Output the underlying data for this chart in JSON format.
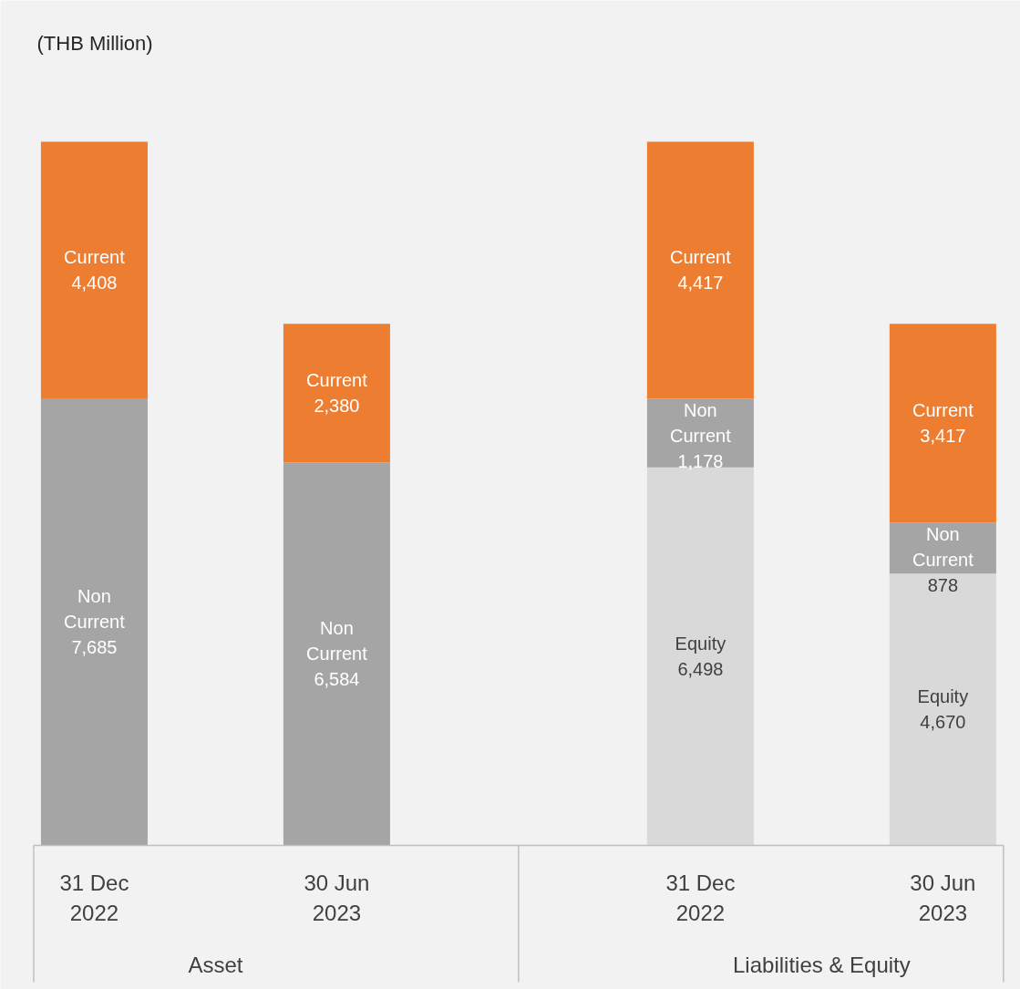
{
  "chart_data": {
    "type": "bar",
    "stacked": true,
    "title": "(THB Million)",
    "categories": [
      "31 Dec 2022",
      "30 Jun 2023",
      "31 Dec 2022",
      "30 Jun 2023"
    ],
    "series": [
      {
        "name": "Equity",
        "color": "#d9d9d9",
        "values": [
          null,
          null,
          6498,
          4670
        ],
        "value_labels": [
          null,
          null,
          "6,498",
          "4,670"
        ]
      },
      {
        "name": "Non Current",
        "color": "#a5a5a5",
        "values": [
          7685,
          6584,
          1178,
          878
        ],
        "value_labels": [
          "7,685",
          "6,584",
          "1,178",
          "878"
        ]
      },
      {
        "name": "Current",
        "color": "#ed7d31",
        "values": [
          4408,
          2380,
          4417,
          3417
        ],
        "value_labels": [
          "4,408",
          "2,380",
          "4,417",
          "3,417"
        ]
      }
    ],
    "annotations": [
      "Asset",
      "Liabilities & Equity"
    ]
  }
}
